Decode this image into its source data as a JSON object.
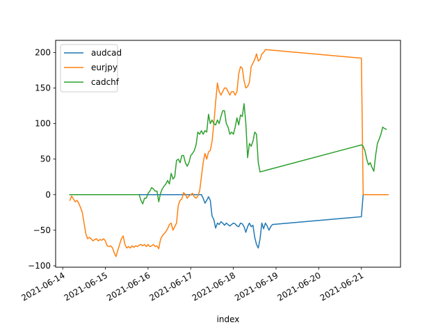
{
  "chart_data": {
    "type": "line",
    "title": "",
    "xlabel": "index",
    "ylabel": "",
    "x_ticks": [
      "2021-06-14",
      "2021-06-15",
      "2021-06-16",
      "2021-06-17",
      "2021-06-18",
      "2021-06-19",
      "2021-06-20",
      "2021-06-21"
    ],
    "y_ticks": [
      -100,
      -50,
      0,
      50,
      100,
      150,
      200
    ],
    "xlim": [
      "2021-06-13T20:00",
      "2021-06-21T22:00"
    ],
    "ylim": [
      -102,
      217
    ],
    "grid": false,
    "legend_placement": "top-left",
    "series": [
      {
        "name": "audcad",
        "color": "#1f77b4",
        "points": [
          [
            "2021-06-14T04:00",
            0
          ],
          [
            "2021-06-17T06:00",
            0
          ],
          [
            "2021-06-17T07:00",
            -5
          ],
          [
            "2021-06-17T08:00",
            -12
          ],
          [
            "2021-06-17T09:00",
            -8
          ],
          [
            "2021-06-17T10:00",
            -3
          ],
          [
            "2021-06-17T11:00",
            -8
          ],
          [
            "2021-06-17T12:00",
            -30
          ],
          [
            "2021-06-17T13:00",
            -35
          ],
          [
            "2021-06-17T14:00",
            -47
          ],
          [
            "2021-06-17T15:00",
            -40
          ],
          [
            "2021-06-17T16:00",
            -42
          ],
          [
            "2021-06-17T17:00",
            -38
          ],
          [
            "2021-06-17T18:00",
            -40
          ],
          [
            "2021-06-17T19:00",
            -43
          ],
          [
            "2021-06-17T20:00",
            -40
          ],
          [
            "2021-06-17T21:00",
            -42
          ],
          [
            "2021-06-17T22:00",
            -44
          ],
          [
            "2021-06-17T23:00",
            -42
          ],
          [
            "2021-06-18T00:00",
            -40
          ],
          [
            "2021-06-18T01:00",
            -41
          ],
          [
            "2021-06-18T02:00",
            -44
          ],
          [
            "2021-06-18T03:00",
            -45
          ],
          [
            "2021-06-18T04:00",
            -40
          ],
          [
            "2021-06-18T05:00",
            -41
          ],
          [
            "2021-06-18T06:00",
            -45
          ],
          [
            "2021-06-18T07:00",
            -53
          ],
          [
            "2021-06-18T08:00",
            -45
          ],
          [
            "2021-06-18T09:00",
            -40
          ],
          [
            "2021-06-18T10:00",
            -45
          ],
          [
            "2021-06-18T11:00",
            -43
          ],
          [
            "2021-06-18T12:00",
            -60
          ],
          [
            "2021-06-18T13:00",
            -70
          ],
          [
            "2021-06-18T14:00",
            -75
          ],
          [
            "2021-06-18T15:00",
            -62
          ],
          [
            "2021-06-18T16:00",
            -40
          ],
          [
            "2021-06-18T17:00",
            -48
          ],
          [
            "2021-06-18T18:00",
            -40
          ],
          [
            "2021-06-18T19:00",
            -44
          ],
          [
            "2021-06-18T20:00",
            -50
          ],
          [
            "2021-06-18T21:00",
            -45
          ],
          [
            "2021-06-18T22:00",
            -42
          ],
          [
            "2021-06-21T00:00",
            -31
          ],
          [
            "2021-06-21T01:00",
            0
          ],
          [
            "2021-06-21T15:00",
            0
          ]
        ]
      },
      {
        "name": "eurjpy",
        "color": "#ff7f0e",
        "points": [
          [
            "2021-06-14T04:00",
            -8
          ],
          [
            "2021-06-14T05:00",
            -2
          ],
          [
            "2021-06-14T06:00",
            -6
          ],
          [
            "2021-06-14T07:00",
            -10
          ],
          [
            "2021-06-14T08:00",
            -8
          ],
          [
            "2021-06-14T09:00",
            -12
          ],
          [
            "2021-06-14T10:00",
            -18
          ],
          [
            "2021-06-14T11:00",
            -25
          ],
          [
            "2021-06-14T12:00",
            -40
          ],
          [
            "2021-06-14T13:00",
            -55
          ],
          [
            "2021-06-14T14:00",
            -62
          ],
          [
            "2021-06-14T15:00",
            -60
          ],
          [
            "2021-06-14T16:00",
            -62
          ],
          [
            "2021-06-14T17:00",
            -65
          ],
          [
            "2021-06-14T18:00",
            -63
          ],
          [
            "2021-06-14T19:00",
            -62
          ],
          [
            "2021-06-14T20:00",
            -65
          ],
          [
            "2021-06-14T21:00",
            -63
          ],
          [
            "2021-06-14T22:00",
            -64
          ],
          [
            "2021-06-14T23:00",
            -62
          ],
          [
            "2021-06-15T00:00",
            -65
          ],
          [
            "2021-06-15T01:00",
            -72
          ],
          [
            "2021-06-15T02:00",
            -73
          ],
          [
            "2021-06-15T03:00",
            -72
          ],
          [
            "2021-06-15T04:00",
            -75
          ],
          [
            "2021-06-15T05:00",
            -82
          ],
          [
            "2021-06-15T06:00",
            -87
          ],
          [
            "2021-06-15T07:00",
            -78
          ],
          [
            "2021-06-15T08:00",
            -70
          ],
          [
            "2021-06-15T09:00",
            -62
          ],
          [
            "2021-06-15T10:00",
            -58
          ],
          [
            "2021-06-15T11:00",
            -70
          ],
          [
            "2021-06-15T12:00",
            -75
          ],
          [
            "2021-06-15T13:00",
            -73
          ],
          [
            "2021-06-15T14:00",
            -75
          ],
          [
            "2021-06-15T15:00",
            -72
          ],
          [
            "2021-06-15T16:00",
            -74
          ],
          [
            "2021-06-15T17:00",
            -72
          ],
          [
            "2021-06-15T18:00",
            -73
          ],
          [
            "2021-06-15T19:00",
            -71
          ],
          [
            "2021-06-15T20:00",
            -70
          ],
          [
            "2021-06-15T21:00",
            -72
          ],
          [
            "2021-06-15T22:00",
            -70
          ],
          [
            "2021-06-15T23:00",
            -73
          ],
          [
            "2021-06-16T00:00",
            -70
          ],
          [
            "2021-06-16T01:00",
            -73
          ],
          [
            "2021-06-16T02:00",
            -72
          ],
          [
            "2021-06-16T03:00",
            -70
          ],
          [
            "2021-06-16T04:00",
            -73
          ],
          [
            "2021-06-16T05:00",
            -72
          ],
          [
            "2021-06-16T06:00",
            -76
          ],
          [
            "2021-06-16T07:00",
            -63
          ],
          [
            "2021-06-16T08:00",
            -58
          ],
          [
            "2021-06-16T09:00",
            -55
          ],
          [
            "2021-06-16T10:00",
            -52
          ],
          [
            "2021-06-16T11:00",
            -48
          ],
          [
            "2021-06-16T12:00",
            -42
          ],
          [
            "2021-06-16T13:00",
            -40
          ],
          [
            "2021-06-16T14:00",
            -50
          ],
          [
            "2021-06-16T15:00",
            -45
          ],
          [
            "2021-06-16T16:00",
            -40
          ],
          [
            "2021-06-16T17:00",
            -15
          ],
          [
            "2021-06-16T18:00",
            -8
          ],
          [
            "2021-06-16T19:00",
            -6
          ],
          [
            "2021-06-16T20:00",
            3
          ],
          [
            "2021-06-16T21:00",
            0
          ],
          [
            "2021-06-16T22:00",
            -5
          ],
          [
            "2021-06-16T23:00",
            -2
          ],
          [
            "2021-06-17T00:00",
            0
          ],
          [
            "2021-06-17T01:00",
            2
          ],
          [
            "2021-06-17T02:00",
            -3
          ],
          [
            "2021-06-17T03:00",
            -5
          ],
          [
            "2021-06-17T04:00",
            -2
          ],
          [
            "2021-06-17T05:00",
            5
          ],
          [
            "2021-06-17T06:00",
            25
          ],
          [
            "2021-06-17T07:00",
            45
          ],
          [
            "2021-06-17T08:00",
            58
          ],
          [
            "2021-06-17T09:00",
            50
          ],
          [
            "2021-06-17T10:00",
            60
          ],
          [
            "2021-06-17T11:00",
            62
          ],
          [
            "2021-06-17T12:00",
            75
          ],
          [
            "2021-06-17T13:00",
            100
          ],
          [
            "2021-06-17T14:00",
            130
          ],
          [
            "2021-06-17T15:00",
            157
          ],
          [
            "2021-06-17T16:00",
            145
          ],
          [
            "2021-06-17T17:00",
            140
          ],
          [
            "2021-06-17T18:00",
            145
          ],
          [
            "2021-06-17T19:00",
            150
          ],
          [
            "2021-06-17T20:00",
            150
          ],
          [
            "2021-06-17T21:00",
            145
          ],
          [
            "2021-06-17T22:00",
            140
          ],
          [
            "2021-06-17T23:00",
            145
          ],
          [
            "2021-06-18T00:00",
            145
          ],
          [
            "2021-06-18T01:00",
            140
          ],
          [
            "2021-06-18T02:00",
            145
          ],
          [
            "2021-06-18T03:00",
            170
          ],
          [
            "2021-06-18T04:00",
            180
          ],
          [
            "2021-06-18T05:00",
            178
          ],
          [
            "2021-06-18T06:00",
            160
          ],
          [
            "2021-06-18T07:00",
            150
          ],
          [
            "2021-06-18T08:00",
            152
          ],
          [
            "2021-06-18T09:00",
            158
          ],
          [
            "2021-06-18T10:00",
            180
          ],
          [
            "2021-06-18T11:00",
            185
          ],
          [
            "2021-06-18T12:00",
            190
          ],
          [
            "2021-06-18T13:00",
            198
          ],
          [
            "2021-06-18T14:00",
            188
          ],
          [
            "2021-06-18T15:00",
            190
          ],
          [
            "2021-06-18T16:00",
            198
          ],
          [
            "2021-06-18T17:00",
            200
          ],
          [
            "2021-06-18T18:00",
            204
          ],
          [
            "2021-06-21T00:00",
            192
          ],
          [
            "2021-06-21T01:00",
            0
          ],
          [
            "2021-06-21T15:00",
            0
          ]
        ]
      },
      {
        "name": "cadchf",
        "color": "#2ca02c",
        "points": [
          [
            "2021-06-14T04:00",
            0
          ],
          [
            "2021-06-15T19:00",
            0
          ],
          [
            "2021-06-15T20:00",
            -8
          ],
          [
            "2021-06-15T21:00",
            -13
          ],
          [
            "2021-06-15T22:00",
            -5
          ],
          [
            "2021-06-15T23:00",
            -5
          ],
          [
            "2021-06-16T00:00",
            2
          ],
          [
            "2021-06-16T01:00",
            5
          ],
          [
            "2021-06-16T02:00",
            10
          ],
          [
            "2021-06-16T03:00",
            8
          ],
          [
            "2021-06-16T04:00",
            5
          ],
          [
            "2021-06-16T05:00",
            5
          ],
          [
            "2021-06-16T06:00",
            -10
          ],
          [
            "2021-06-16T07:00",
            2
          ],
          [
            "2021-06-16T08:00",
            8
          ],
          [
            "2021-06-16T09:00",
            12
          ],
          [
            "2021-06-16T10:00",
            15
          ],
          [
            "2021-06-16T11:00",
            20
          ],
          [
            "2021-06-16T12:00",
            15
          ],
          [
            "2021-06-16T13:00",
            30
          ],
          [
            "2021-06-16T14:00",
            22
          ],
          [
            "2021-06-16T15:00",
            25
          ],
          [
            "2021-06-16T16:00",
            48
          ],
          [
            "2021-06-16T17:00",
            50
          ],
          [
            "2021-06-16T18:00",
            45
          ],
          [
            "2021-06-16T19:00",
            55
          ],
          [
            "2021-06-16T20:00",
            55
          ],
          [
            "2021-06-16T21:00",
            45
          ],
          [
            "2021-06-16T22:00",
            40
          ],
          [
            "2021-06-16T23:00",
            45
          ],
          [
            "2021-06-17T00:00",
            55
          ],
          [
            "2021-06-17T01:00",
            58
          ],
          [
            "2021-06-17T02:00",
            62
          ],
          [
            "2021-06-17T03:00",
            70
          ],
          [
            "2021-06-17T04:00",
            88
          ],
          [
            "2021-06-17T05:00",
            85
          ],
          [
            "2021-06-17T06:00",
            90
          ],
          [
            "2021-06-17T07:00",
            85
          ],
          [
            "2021-06-17T08:00",
            90
          ],
          [
            "2021-06-17T09:00",
            88
          ],
          [
            "2021-06-17T10:00",
            113
          ],
          [
            "2021-06-17T11:00",
            100
          ],
          [
            "2021-06-17T12:00",
            105
          ],
          [
            "2021-06-17T13:00",
            100
          ],
          [
            "2021-06-17T14:00",
            98
          ],
          [
            "2021-06-17T15:00",
            105
          ],
          [
            "2021-06-17T16:00",
            100
          ],
          [
            "2021-06-17T17:00",
            110
          ],
          [
            "2021-06-17T18:00",
            118
          ],
          [
            "2021-06-17T19:00",
            118
          ],
          [
            "2021-06-17T20:00",
            100
          ],
          [
            "2021-06-17T21:00",
            95
          ],
          [
            "2021-06-17T22:00",
            85
          ],
          [
            "2021-06-17T23:00",
            88
          ],
          [
            "2021-06-18T00:00",
            85
          ],
          [
            "2021-06-18T01:00",
            95
          ],
          [
            "2021-06-18T02:00",
            108
          ],
          [
            "2021-06-18T03:00",
            98
          ],
          [
            "2021-06-18T04:00",
            112
          ],
          [
            "2021-06-18T05:00",
            110
          ],
          [
            "2021-06-18T06:00",
            128
          ],
          [
            "2021-06-18T07:00",
            100
          ],
          [
            "2021-06-18T08:00",
            52
          ],
          [
            "2021-06-18T09:00",
            72
          ],
          [
            "2021-06-18T10:00",
            68
          ],
          [
            "2021-06-18T11:00",
            75
          ],
          [
            "2021-06-18T12:00",
            88
          ],
          [
            "2021-06-18T13:00",
            85
          ],
          [
            "2021-06-18T14:00",
            45
          ],
          [
            "2021-06-18T15:00",
            32
          ],
          [
            "2021-06-21T00:00",
            70
          ],
          [
            "2021-06-21T01:00",
            68
          ],
          [
            "2021-06-21T02:00",
            62
          ],
          [
            "2021-06-21T03:00",
            50
          ],
          [
            "2021-06-21T04:00",
            42
          ],
          [
            "2021-06-21T05:00",
            45
          ],
          [
            "2021-06-21T06:00",
            38
          ],
          [
            "2021-06-21T07:00",
            33
          ],
          [
            "2021-06-21T08:00",
            55
          ],
          [
            "2021-06-21T09:00",
            72
          ],
          [
            "2021-06-21T10:00",
            78
          ],
          [
            "2021-06-21T11:00",
            85
          ],
          [
            "2021-06-21T12:00",
            95
          ],
          [
            "2021-06-21T13:00",
            93
          ],
          [
            "2021-06-21T14:00",
            92
          ]
        ]
      }
    ]
  }
}
